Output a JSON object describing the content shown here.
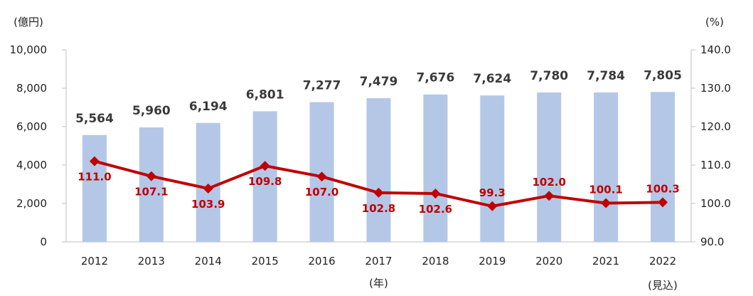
{
  "chart_data": {
    "type": "bar",
    "categories": [
      "2012",
      "2013",
      "2014",
      "2015",
      "2016",
      "2017",
      "2018",
      "2019",
      "2020",
      "2021",
      "2022"
    ],
    "series": [
      {
        "type": "bar",
        "axis": "left",
        "values": [
          5564,
          5960,
          6194,
          6801,
          7277,
          7479,
          7676,
          7624,
          7780,
          7784,
          7805
        ],
        "labels": [
          "5,564",
          "5,960",
          "6,194",
          "6,801",
          "7,277",
          "7,479",
          "7,676",
          "7,624",
          "7,780",
          "7,784",
          "7,805"
        ],
        "color": "#b4c7e7"
      },
      {
        "type": "line",
        "axis": "right",
        "values": [
          111.0,
          107.1,
          103.9,
          109.8,
          107.0,
          102.8,
          102.6,
          99.3,
          102.0,
          100.1,
          100.3
        ],
        "labels": [
          "111.0",
          "107.1",
          "103.9",
          "109.8",
          "107.0",
          "102.8",
          "102.6",
          "99.3",
          "102.0",
          "100.1",
          "100.3"
        ],
        "color": "#c00000"
      }
    ],
    "left_axis": {
      "unit": "(億円)",
      "ylim": [
        0,
        10000
      ],
      "ticks": [
        "0",
        "2,000",
        "4,000",
        "6,000",
        "8,000",
        "10,000"
      ]
    },
    "right_axis": {
      "unit": "(%)",
      "ylim": [
        90,
        140
      ],
      "ticks": [
        "90.0",
        "100.0",
        "110.0",
        "120.0",
        "130.0",
        "140.0"
      ]
    },
    "x_annotations": {
      "year_unit": "(年)",
      "forecast": "(見込)"
    },
    "grid": false,
    "legend": "none"
  }
}
